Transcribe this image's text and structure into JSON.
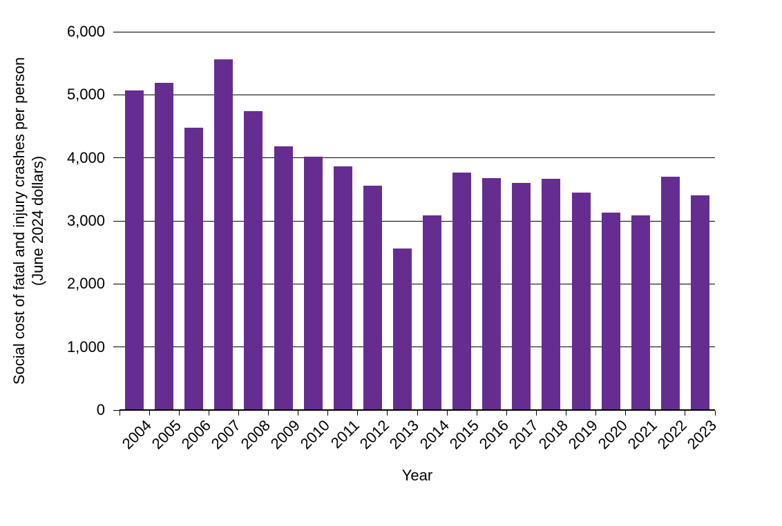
{
  "chart_data": {
    "type": "bar",
    "title": "",
    "xlabel": "Year",
    "ylabel": "Social cost of fatal and injury crashes per person (June 2024 dollars)",
    "ylabel_line1": "Social cost of fatal and injury crashes per person",
    "ylabel_line2": "(June 2024 dollars)",
    "categories": [
      "2004",
      "2005",
      "2006",
      "2007",
      "2008",
      "2009",
      "2010",
      "2011",
      "2012",
      "2013",
      "2014",
      "2015",
      "2016",
      "2017",
      "2018",
      "2019",
      "2020",
      "2021",
      "2022",
      "2023"
    ],
    "values": [
      5070,
      5190,
      4480,
      5560,
      4740,
      4180,
      4020,
      3860,
      3560,
      2560,
      3090,
      3770,
      3680,
      3600,
      3670,
      3450,
      3130,
      3090,
      3700,
      3400
    ],
    "ylim": [
      0,
      6000
    ],
    "ytick_step": 1000,
    "ytick_labels": [
      "0",
      "1,000",
      "2,000",
      "3,000",
      "4,000",
      "5,000",
      "6,000"
    ],
    "bar_color": "#662D91",
    "axis_color": "#000000",
    "grid": true,
    "legend_position": "none",
    "x_label_rotation_deg": -45
  }
}
